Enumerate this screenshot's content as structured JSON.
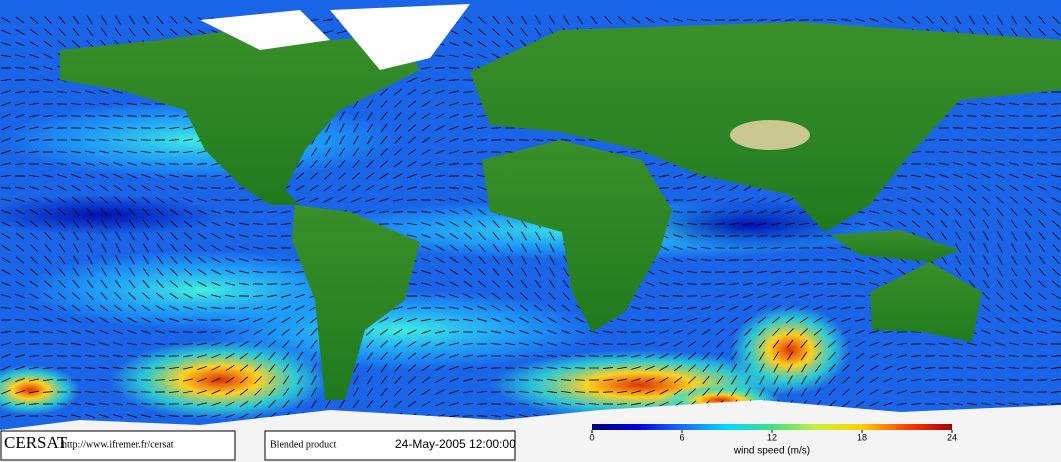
{
  "footer": {
    "logo": "CERSAT",
    "url": "http://www.ifremer.fr/cersat",
    "product": "Blended product",
    "date": "24-May-2005 12:00:00"
  },
  "colorbar": {
    "label": "wind speed (m/s)",
    "lim": [
      0,
      24
    ],
    "ticks": [
      0,
      6,
      12,
      18,
      24
    ],
    "colors": [
      "#00007a",
      "#0000e0",
      "#1a6cff",
      "#00d8ff",
      "#40e080",
      "#c8f040",
      "#ffd000",
      "#ff4000",
      "#a00000"
    ]
  }
}
